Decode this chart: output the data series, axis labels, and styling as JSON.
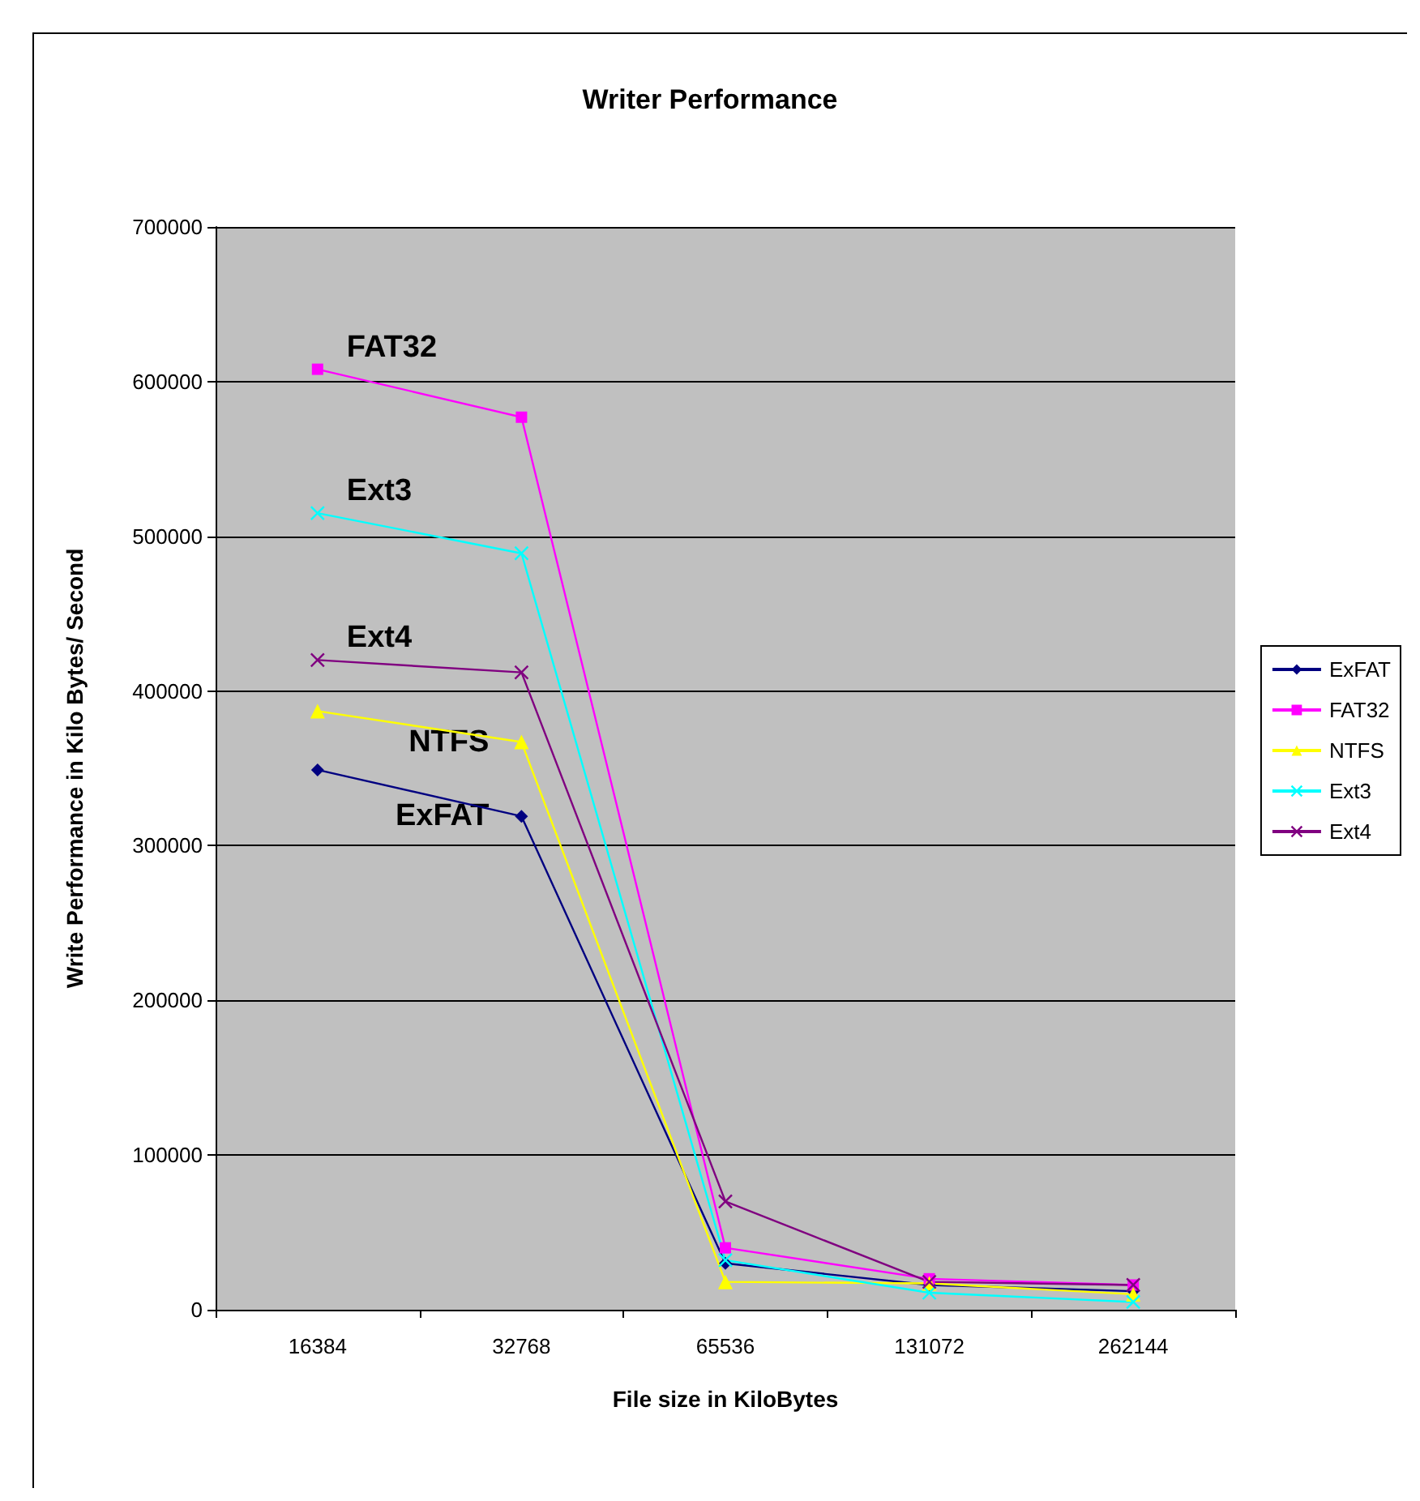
{
  "chart_data": {
    "type": "line",
    "title": "Writer Performance",
    "xlabel": "File size in KiloBytes",
    "ylabel": "Write Performance in Kilo Bytes/ Second",
    "categories": [
      "16384",
      "32768",
      "65536",
      "131072",
      "262144"
    ],
    "series": [
      {
        "name": "ExFAT",
        "color": "#000080",
        "marker": "diamond",
        "values": [
          349000,
          319000,
          30000,
          16000,
          12000
        ]
      },
      {
        "name": "FAT32",
        "color": "#ff00ff",
        "marker": "square",
        "values": [
          608000,
          577000,
          40000,
          20000,
          16000
        ]
      },
      {
        "name": "NTFS",
        "color": "#ffff00",
        "marker": "triangle",
        "values": [
          387000,
          367000,
          18000,
          17000,
          10000
        ]
      },
      {
        "name": "Ext3",
        "color": "#00ffff",
        "marker": "cross",
        "values": [
          515000,
          489000,
          32000,
          11000,
          5000
        ]
      },
      {
        "name": "Ext4",
        "color": "#800080",
        "marker": "cross",
        "values": [
          420000,
          412000,
          70000,
          18000,
          16000
        ]
      }
    ],
    "annotations": [
      {
        "text": "FAT32",
        "x": "16384",
        "y": 608000
      },
      {
        "text": "Ext3",
        "x": "16384",
        "y": 515000
      },
      {
        "text": "Ext4",
        "x": "16384",
        "y": 420000
      },
      {
        "text": "NTFS",
        "x": "32768",
        "y": 367000
      },
      {
        "text": "ExFAT",
        "x": "32768",
        "y": 319000
      }
    ],
    "ylim": [
      0,
      700000
    ],
    "yticks": [
      0,
      100000,
      200000,
      300000,
      400000,
      500000,
      600000,
      700000
    ],
    "grid": "y",
    "legend": "right",
    "line_style": "solid"
  }
}
